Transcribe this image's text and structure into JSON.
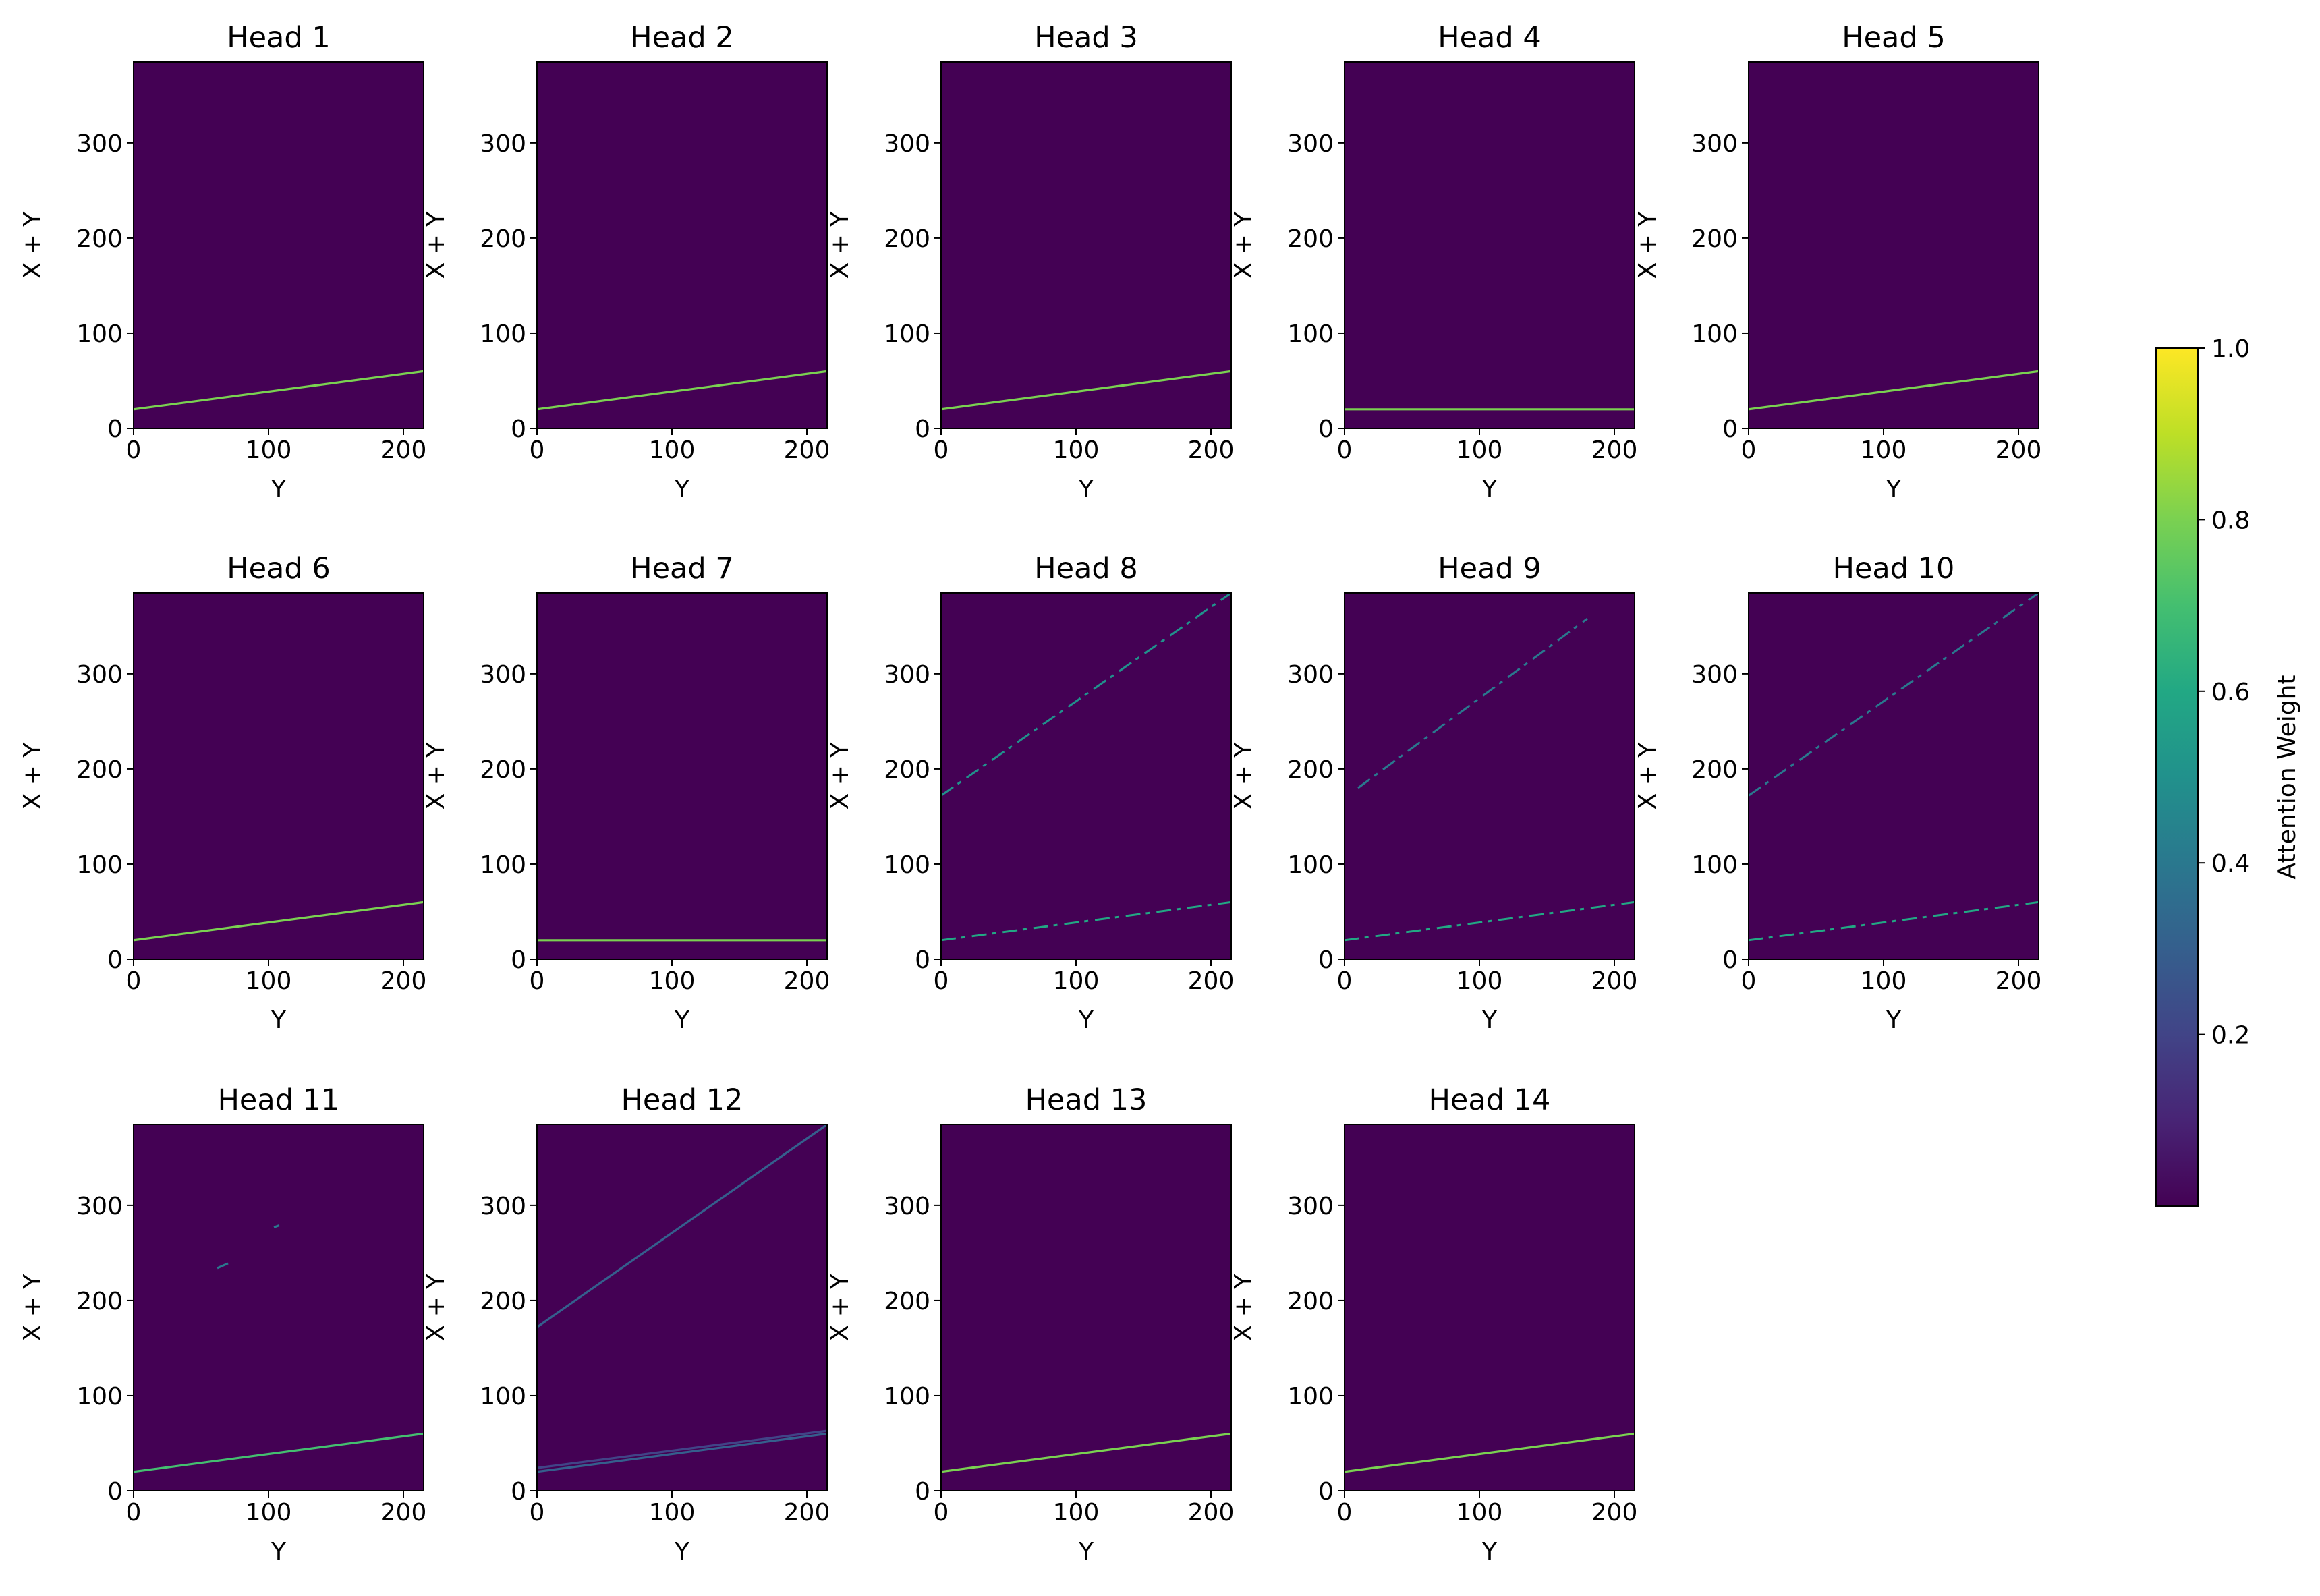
{
  "figure": {
    "colorbar_label": "Attention Weight"
  },
  "colors": {
    "background": "#440154",
    "line": "#8fd744",
    "faint_line": "#3b528b",
    "mid_line": "#2a788e"
  },
  "colorbar": {
    "ticks": [
      "0.2",
      "0.4",
      "0.6",
      "0.8",
      "1.0"
    ],
    "tick_values": [
      0.2,
      0.4,
      0.6,
      0.8,
      1.0
    ],
    "range": [
      0.0,
      1.0
    ],
    "colormap": "viridis"
  },
  "chart_data": [
    {
      "type": "heatmap",
      "title": "Head 1",
      "xlabel": "Y",
      "ylabel": "X + Y",
      "xlim": [
        0,
        215
      ],
      "ylim": [
        0,
        385
      ],
      "x_ticks": [
        "0",
        "100",
        "200"
      ],
      "y_ticks": [
        "0",
        "100",
        "200",
        "300"
      ],
      "lines": [
        {
          "x": [
            0,
            215
          ],
          "y": [
            20,
            60
          ],
          "weight": 0.8
        }
      ]
    },
    {
      "type": "heatmap",
      "title": "Head 2",
      "xlabel": "Y",
      "ylabel": "X + Y",
      "xlim": [
        0,
        215
      ],
      "ylim": [
        0,
        385
      ],
      "x_ticks": [
        "0",
        "100",
        "200"
      ],
      "y_ticks": [
        "0",
        "100",
        "200",
        "300"
      ],
      "lines": [
        {
          "x": [
            0,
            215
          ],
          "y": [
            20,
            60
          ],
          "weight": 0.8
        }
      ]
    },
    {
      "type": "heatmap",
      "title": "Head 3",
      "xlabel": "Y",
      "ylabel": "X + Y",
      "xlim": [
        0,
        215
      ],
      "ylim": [
        0,
        385
      ],
      "x_ticks": [
        "0",
        "100",
        "200"
      ],
      "y_ticks": [
        "0",
        "100",
        "200",
        "300"
      ],
      "lines": [
        {
          "x": [
            0,
            215
          ],
          "y": [
            20,
            60
          ],
          "weight": 0.8
        }
      ]
    },
    {
      "type": "heatmap",
      "title": "Head 4",
      "xlabel": "Y",
      "ylabel": "X + Y",
      "xlim": [
        0,
        215
      ],
      "ylim": [
        0,
        385
      ],
      "x_ticks": [
        "0",
        "100",
        "200"
      ],
      "y_ticks": [
        "0",
        "100",
        "200",
        "300"
      ],
      "lines": [
        {
          "x": [
            0,
            215
          ],
          "y": [
            20,
            20
          ],
          "weight": 0.8
        }
      ]
    },
    {
      "type": "heatmap",
      "title": "Head 5",
      "xlabel": "Y",
      "ylabel": "X + Y",
      "xlim": [
        0,
        215
      ],
      "ylim": [
        0,
        385
      ],
      "x_ticks": [
        "0",
        "100",
        "200"
      ],
      "y_ticks": [
        "0",
        "100",
        "200",
        "300"
      ],
      "lines": [
        {
          "x": [
            0,
            215
          ],
          "y": [
            20,
            60
          ],
          "weight": 0.8
        }
      ]
    },
    {
      "type": "heatmap",
      "title": "Head 6",
      "xlabel": "Y",
      "ylabel": "X + Y",
      "xlim": [
        0,
        215
      ],
      "ylim": [
        0,
        385
      ],
      "x_ticks": [
        "0",
        "100",
        "200"
      ],
      "y_ticks": [
        "0",
        "100",
        "200",
        "300"
      ],
      "lines": [
        {
          "x": [
            0,
            215
          ],
          "y": [
            20,
            60
          ],
          "weight": 0.8
        }
      ]
    },
    {
      "type": "heatmap",
      "title": "Head 7",
      "xlabel": "Y",
      "ylabel": "X + Y",
      "xlim": [
        0,
        215
      ],
      "ylim": [
        0,
        385
      ],
      "x_ticks": [
        "0",
        "100",
        "200"
      ],
      "y_ticks": [
        "0",
        "100",
        "200",
        "300"
      ],
      "lines": [
        {
          "x": [
            0,
            215
          ],
          "y": [
            20,
            20
          ],
          "weight": 0.8
        }
      ]
    },
    {
      "type": "heatmap",
      "title": "Head 8",
      "xlabel": "Y",
      "ylabel": "X + Y",
      "xlim": [
        0,
        215
      ],
      "ylim": [
        0,
        385
      ],
      "x_ticks": [
        "0",
        "100",
        "200"
      ],
      "y_ticks": [
        "0",
        "100",
        "200",
        "300"
      ],
      "lines": [
        {
          "x": [
            0,
            215
          ],
          "y": [
            20,
            60
          ],
          "weight": 0.6,
          "dashed": true
        },
        {
          "x": [
            0,
            215
          ],
          "y": [
            172,
            385
          ],
          "weight": 0.5,
          "dashed": true
        }
      ]
    },
    {
      "type": "heatmap",
      "title": "Head 9",
      "xlabel": "Y",
      "ylabel": "X + Y",
      "xlim": [
        0,
        215
      ],
      "ylim": [
        0,
        385
      ],
      "x_ticks": [
        "0",
        "100",
        "200"
      ],
      "y_ticks": [
        "0",
        "100",
        "200",
        "300"
      ],
      "lines": [
        {
          "x": [
            0,
            215
          ],
          "y": [
            20,
            60
          ],
          "weight": 0.6,
          "dashed": true
        },
        {
          "x": [
            10,
            180
          ],
          "y": [
            180,
            358
          ],
          "weight": 0.4,
          "dashed": true
        }
      ]
    },
    {
      "type": "heatmap",
      "title": "Head 10",
      "xlabel": "Y",
      "ylabel": "X + Y",
      "xlim": [
        0,
        215
      ],
      "ylim": [
        0,
        385
      ],
      "x_ticks": [
        "0",
        "100",
        "200"
      ],
      "y_ticks": [
        "0",
        "100",
        "200",
        "300"
      ],
      "lines": [
        {
          "x": [
            0,
            215
          ],
          "y": [
            20,
            60
          ],
          "weight": 0.6,
          "dashed": true
        },
        {
          "x": [
            0,
            215
          ],
          "y": [
            172,
            385
          ],
          "weight": 0.4,
          "dashed": true
        }
      ]
    },
    {
      "type": "heatmap",
      "title": "Head 11",
      "xlabel": "Y",
      "ylabel": "X + Y",
      "xlim": [
        0,
        215
      ],
      "ylim": [
        0,
        385
      ],
      "x_ticks": [
        "0",
        "100",
        "200"
      ],
      "y_ticks": [
        "0",
        "100",
        "200",
        "300"
      ],
      "lines": [
        {
          "x": [
            0,
            215
          ],
          "y": [
            20,
            60
          ],
          "weight": 0.7
        },
        {
          "x": [
            62,
            70
          ],
          "y": [
            234,
            239
          ],
          "weight": 0.4
        },
        {
          "x": [
            104,
            108
          ],
          "y": [
            277,
            279
          ],
          "weight": 0.4
        }
      ]
    },
    {
      "type": "heatmap",
      "title": "Head 12",
      "xlabel": "Y",
      "ylabel": "X + Y",
      "xlim": [
        0,
        215
      ],
      "ylim": [
        0,
        385
      ],
      "x_ticks": [
        "0",
        "100",
        "200"
      ],
      "y_ticks": [
        "0",
        "100",
        "200",
        "300"
      ],
      "lines": [
        {
          "x": [
            0,
            215
          ],
          "y": [
            20,
            60
          ],
          "weight": 0.3
        },
        {
          "x": [
            0,
            215
          ],
          "y": [
            24,
            63
          ],
          "weight": 0.2
        },
        {
          "x": [
            0,
            215
          ],
          "y": [
            172,
            385
          ],
          "weight": 0.3
        }
      ]
    },
    {
      "type": "heatmap",
      "title": "Head 13",
      "xlabel": "Y",
      "ylabel": "X + Y",
      "xlim": [
        0,
        215
      ],
      "ylim": [
        0,
        385
      ],
      "x_ticks": [
        "0",
        "100",
        "200"
      ],
      "y_ticks": [
        "0",
        "100",
        "200",
        "300"
      ],
      "lines": [
        {
          "x": [
            0,
            215
          ],
          "y": [
            20,
            60
          ],
          "weight": 0.8
        }
      ]
    },
    {
      "type": "heatmap",
      "title": "Head 14",
      "xlabel": "Y",
      "ylabel": "X + Y",
      "xlim": [
        0,
        215
      ],
      "ylim": [
        0,
        385
      ],
      "x_ticks": [
        "0",
        "100",
        "200"
      ],
      "y_ticks": [
        "0",
        "100",
        "200",
        "300"
      ],
      "lines": [
        {
          "x": [
            0,
            215
          ],
          "y": [
            20,
            60
          ],
          "weight": 0.8
        }
      ]
    }
  ]
}
